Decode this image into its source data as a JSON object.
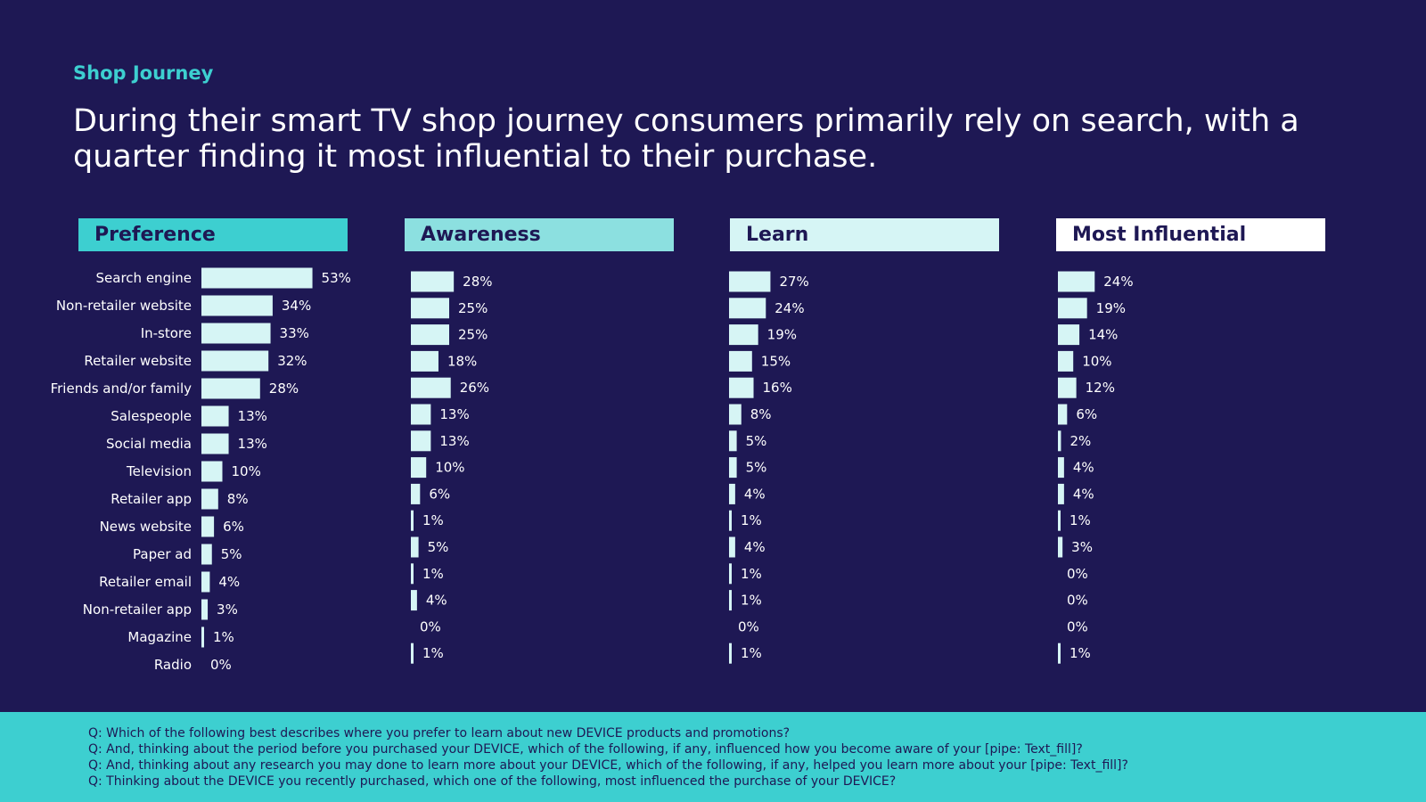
{
  "eyebrow": "Shop Journey",
  "headline": "During their smart TV shop journey consumers primarily rely on search, with a quarter finding it most influential to their purchase.",
  "colors": {
    "background": "#1e1854",
    "bar": "#d6f5f5",
    "footer": "#3dcfd0",
    "header_preference": "#3dcfd0",
    "header_awareness": "#8ce0e0",
    "header_learn": "#d6f5f5",
    "header_most_influential": "#ffffff"
  },
  "chart_data": {
    "type": "bar",
    "orientation": "horizontal",
    "categories": [
      "Search engine",
      "Non-retailer website",
      "In-store",
      "Retailer website",
      "Friends and/or family",
      "Salespeople",
      "Social media",
      "Television",
      "Retailer app",
      "News website",
      "Paper ad",
      "Retailer email",
      "Non-retailer app",
      "Magazine",
      "Radio"
    ],
    "series": [
      {
        "name": "Preference",
        "values": [
          53,
          34,
          33,
          32,
          28,
          13,
          13,
          10,
          8,
          6,
          5,
          4,
          3,
          1,
          0
        ],
        "labels": [
          "53%",
          "34%",
          "33%",
          "32%",
          "28%",
          "13%",
          "13%",
          "10%",
          "8%",
          "6%",
          "5%",
          "4%",
          "3%",
          "1%",
          "0%"
        ]
      },
      {
        "name": "Awareness",
        "values": [
          28,
          25,
          25,
          18,
          26,
          13,
          13,
          10,
          6,
          1,
          5,
          1,
          4,
          0,
          1
        ],
        "labels": [
          "28%",
          "25%",
          "25%",
          "18%",
          "26%",
          "13%",
          "13%",
          "10%",
          "6%",
          "1%",
          "5%",
          "1%",
          "4%",
          "0%",
          "1%"
        ]
      },
      {
        "name": "Learn",
        "values": [
          27,
          24,
          19,
          15,
          16,
          8,
          5,
          5,
          4,
          1,
          4,
          1,
          1,
          0,
          1
        ],
        "labels": [
          "27%",
          "24%",
          "19%",
          "15%",
          "16%",
          "8%",
          "5%",
          "5%",
          "4%",
          "1%",
          "4%",
          "1%",
          "1%",
          "0%",
          "1%"
        ]
      },
      {
        "name": "Most Influential",
        "values": [
          24,
          19,
          14,
          10,
          12,
          6,
          2,
          4,
          4,
          1,
          3,
          0,
          0,
          0,
          1
        ],
        "labels": [
          "24%",
          "19%",
          "14%",
          "10%",
          "12%",
          "6%",
          "2%",
          "4%",
          "4%",
          "1%",
          "3%",
          "0%",
          "0%",
          "0%",
          "1%"
        ]
      }
    ],
    "title": "",
    "xlabel": "",
    "ylabel": ""
  },
  "footer": {
    "questions": [
      "Q: Which of the following best describes where you prefer to learn about new DEVICE products and promotions?",
      "Q: And, thinking about the period before you purchased your DEVICE, which of the following, if any, influenced how you become aware of your [pipe: Text_fill]?",
      "Q: And, thinking about any research you may done to learn more about your DEVICE, which of the following, if any, helped you learn more about your [pipe: Text_fill]?",
      "Q: Thinking about the DEVICE you recently purchased, which one of the following, most influenced the purchase of your DEVICE?"
    ]
  }
}
